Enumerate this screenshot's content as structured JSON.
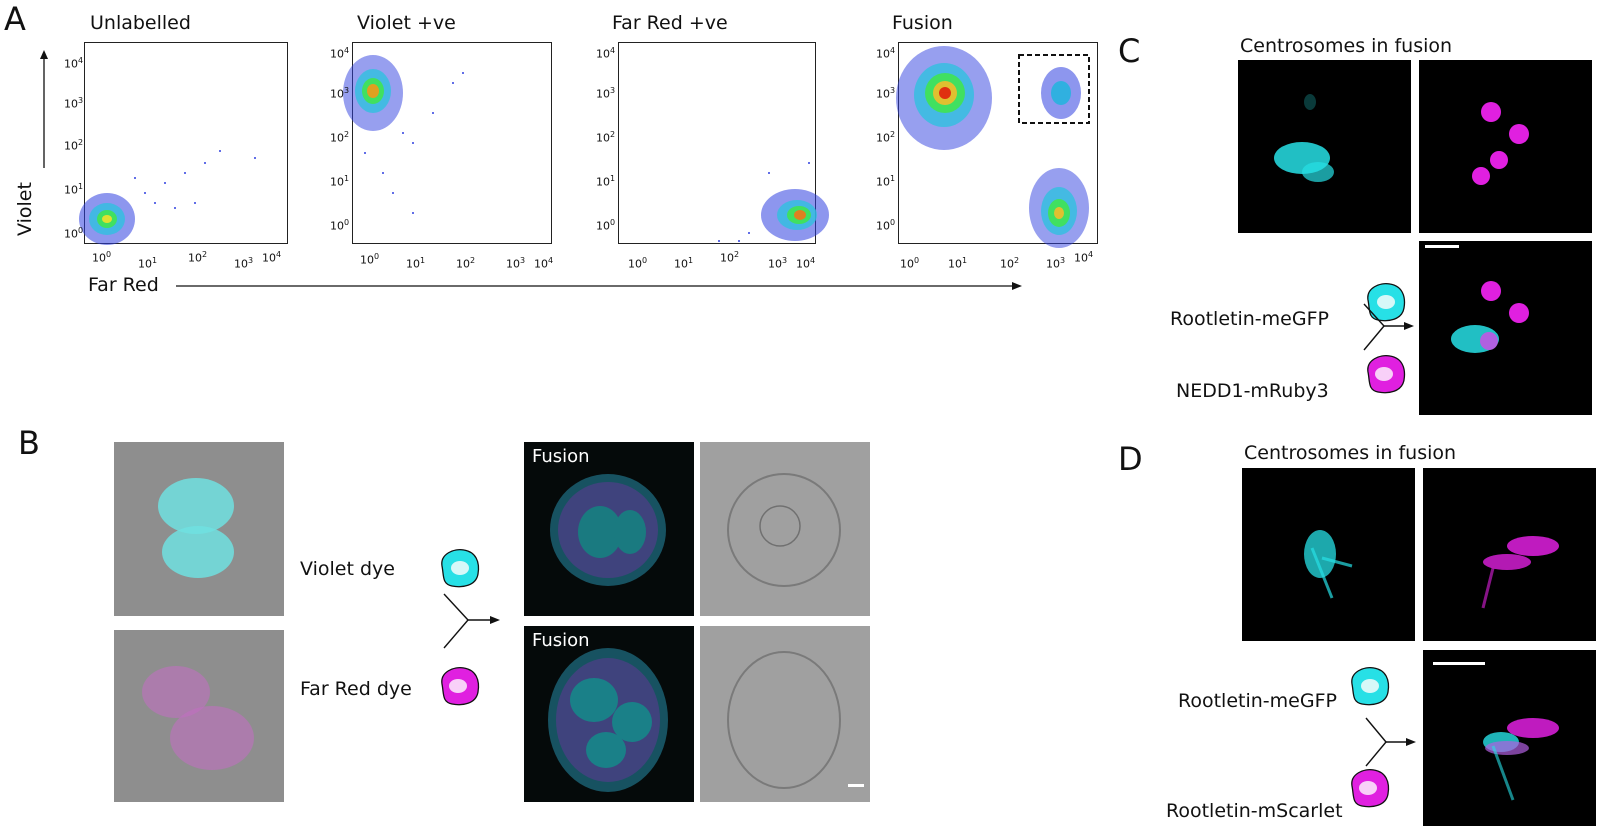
{
  "panels": {
    "a": "A",
    "b": "B",
    "c": "C",
    "d": "D"
  },
  "flow": {
    "plots": [
      {
        "title": "Unlabelled",
        "gated": false
      },
      {
        "title": "Violet +ve",
        "gated": false
      },
      {
        "title": "Far Red +ve",
        "gated": false
      },
      {
        "title": "Fusion",
        "gated": true
      }
    ],
    "y_axis_label": "Violet",
    "x_axis_label": "Far Red",
    "tick_base": "10",
    "exponents": [
      "0",
      "1",
      "2",
      "3",
      "4"
    ]
  },
  "panel_b": {
    "violet_label": "Violet dye",
    "farred_label": "Far Red dye",
    "fusion_tag_1": "Fusion",
    "fusion_tag_2": "Fusion"
  },
  "panel_c": {
    "title": "Centrosomes in fusion",
    "label_top": "Rootletin-meGFP",
    "label_bottom": "NEDD1-mRuby3"
  },
  "panel_d": {
    "title": "Centrosomes in fusion",
    "label_top": "Rootletin-meGFP",
    "label_bottom": "Rootletin-mScarlet"
  },
  "colors": {
    "cyan": "#27e0e6",
    "magenta": "#e020e0",
    "flow_dense": "#e03010",
    "flow_sparse": "#2030e0"
  }
}
